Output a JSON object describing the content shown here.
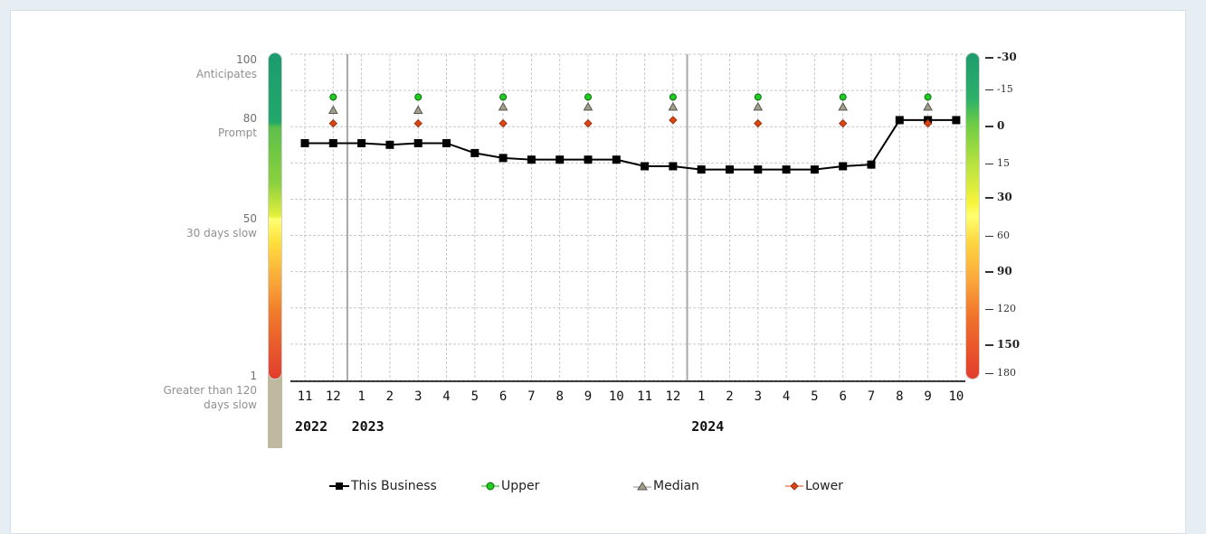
{
  "colors": {
    "business": "#000000",
    "upper": "#22cc22",
    "median": "#a49f84",
    "lower": "#dd4411",
    "grid": "#c8c8c8",
    "year_divider": "#a8a8a8",
    "gauge_gray": "#bfb9a0"
  },
  "left_scale": [
    {
      "value": "100",
      "label": "Anticipates"
    },
    {
      "value": "80",
      "label": "Prompt"
    },
    {
      "value": "50",
      "label": "30 days slow"
    },
    {
      "value": "1",
      "label": "Greater than 120 days slow"
    }
  ],
  "right_scale": [
    {
      "label": "-30",
      "bold": true
    },
    {
      "label": "-15",
      "bold": false
    },
    {
      "label": "0",
      "bold": true
    },
    {
      "label": "15",
      "bold": false
    },
    {
      "label": "30",
      "bold": true
    },
    {
      "label": "60",
      "bold": false
    },
    {
      "label": "90",
      "bold": true
    },
    {
      "label": "120",
      "bold": false
    },
    {
      "label": "150",
      "bold": true
    },
    {
      "label": "180",
      "bold": false
    }
  ],
  "years": [
    {
      "label": "2022",
      "month_index": 0
    },
    {
      "label": "2023",
      "month_index": 2
    },
    {
      "label": "2024",
      "month_index": 14
    }
  ],
  "chart_data": {
    "type": "line",
    "title": "",
    "xlabel": "",
    "ylabel": "",
    "ylim": [
      1,
      100
    ],
    "grid": true,
    "legend_position": "bottom",
    "categories": [
      "11",
      "12",
      "1",
      "2",
      "3",
      "4",
      "5",
      "6",
      "7",
      "8",
      "9",
      "10",
      "11",
      "12",
      "1",
      "2",
      "3",
      "4",
      "5",
      "6",
      "7",
      "8",
      "9",
      "10"
    ],
    "series": [
      {
        "name": "This Business",
        "marker": "square",
        "values": [
          73,
          73,
          73,
          72.5,
          73,
          73,
          70,
          68.5,
          68,
          68,
          68,
          68,
          66,
          66,
          65,
          65,
          65,
          65,
          65,
          66,
          66.5,
          80,
          80,
          80
        ]
      },
      {
        "name": "Upper",
        "marker": "circle",
        "values": [
          null,
          87,
          null,
          null,
          87,
          null,
          null,
          87,
          null,
          null,
          87,
          null,
          null,
          87,
          null,
          null,
          87,
          null,
          null,
          87,
          null,
          null,
          87,
          null
        ]
      },
      {
        "name": "Median",
        "marker": "triangle",
        "values": [
          null,
          83,
          null,
          null,
          83,
          null,
          null,
          84,
          null,
          null,
          84,
          null,
          null,
          84,
          null,
          null,
          84,
          null,
          null,
          84,
          null,
          null,
          84,
          null
        ]
      },
      {
        "name": "Lower",
        "marker": "diamond",
        "values": [
          null,
          79,
          null,
          null,
          79,
          null,
          null,
          79,
          null,
          null,
          79,
          null,
          null,
          80,
          null,
          null,
          79,
          null,
          null,
          79,
          null,
          null,
          79,
          null
        ]
      }
    ]
  }
}
